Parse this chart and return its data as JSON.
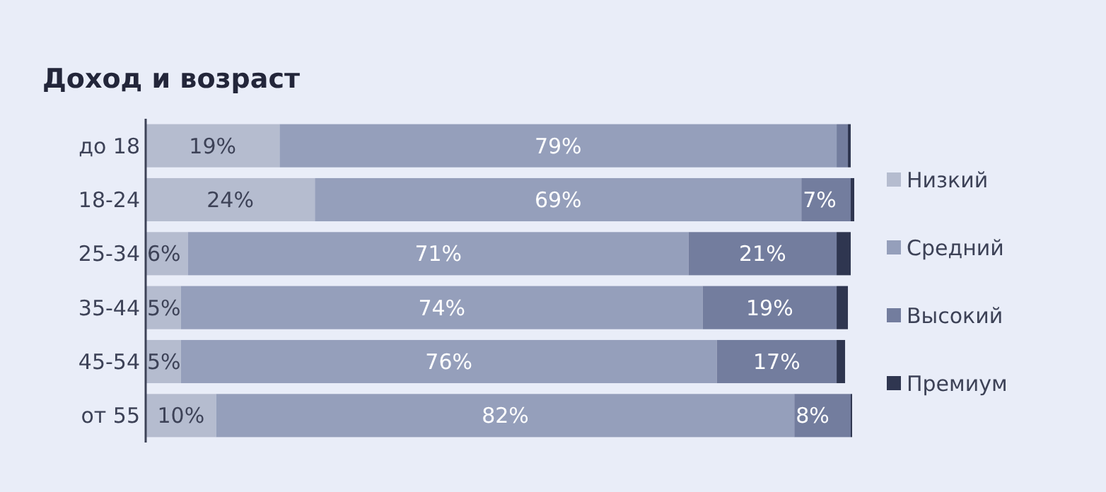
{
  "chart_data": {
    "type": "bar",
    "orientation": "horizontal",
    "stacked": true,
    "title": "Доход и возраст",
    "categories": [
      "до 18",
      "18-24",
      "25-34",
      "35-44",
      "45-54",
      "от 55"
    ],
    "legend": "right",
    "series": [
      {
        "name": "Низкий",
        "color": "#b5bccf",
        "values": [
          19,
          24,
          6,
          5,
          5,
          10
        ],
        "value_labels": [
          "19%",
          "24%",
          "6%",
          "5%",
          "5%",
          "10%"
        ]
      },
      {
        "name": "Средний",
        "color": "#959fbb",
        "values": [
          79,
          69,
          71,
          74,
          76,
          82
        ],
        "value_labels": [
          "79%",
          "69%",
          "71%",
          "74%",
          "76%",
          "82%"
        ]
      },
      {
        "name": "Высокий",
        "color": "#737d9e",
        "values": [
          1.6,
          7,
          21,
          19,
          17,
          8
        ],
        "value_labels": [
          null,
          "7%",
          "21%",
          "19%",
          "17%",
          "8%"
        ]
      },
      {
        "name": "Премиум",
        "color": "#2f3650",
        "values": [
          0.4,
          0.5,
          2,
          1.6,
          1.2,
          0.2
        ],
        "value_labels": [
          null,
          null,
          null,
          null,
          null,
          null
        ]
      }
    ]
  }
}
